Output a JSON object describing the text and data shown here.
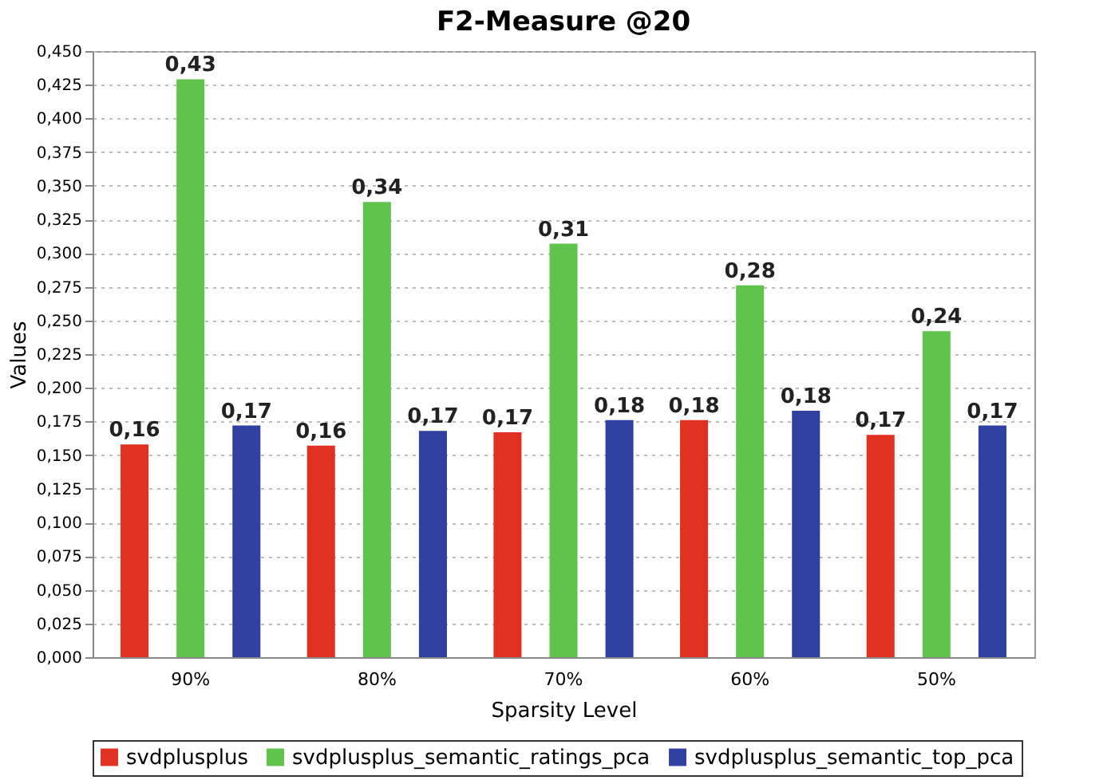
{
  "chart_data": {
    "type": "bar",
    "title": "F2-Measure @20",
    "xlabel": "Sparsity Level",
    "ylabel": "Values",
    "categories": [
      "90%",
      "80%",
      "70%",
      "60%",
      "50%"
    ],
    "series": [
      {
        "name": "svdplusplus",
        "color": "#e03020",
        "values": [
          0.158,
          0.157,
          0.167,
          0.176,
          0.165
        ],
        "value_labels": [
          "0,16",
          "0,16",
          "0,17",
          "0,18",
          "0,17"
        ]
      },
      {
        "name": "svdplusplus_semantic_ratings_pca",
        "color": "#60c44c",
        "values": [
          0.429,
          0.338,
          0.307,
          0.276,
          0.242
        ],
        "value_labels": [
          "0,43",
          "0,34",
          "0,31",
          "0,28",
          "0,24"
        ]
      },
      {
        "name": "svdplusplus_semantic_top_pca",
        "color": "#3040a0",
        "values": [
          0.172,
          0.168,
          0.176,
          0.183,
          0.172
        ],
        "value_labels": [
          "0,17",
          "0,17",
          "0,18",
          "0,18",
          "0,17"
        ]
      }
    ],
    "ylim": [
      0,
      0.45
    ],
    "yticks": [
      {
        "value": 0,
        "label": "0,000"
      },
      {
        "value": 0.025,
        "label": "0,025"
      },
      {
        "value": 0.05,
        "label": "0,050"
      },
      {
        "value": 0.075,
        "label": "0,075"
      },
      {
        "value": 0.1,
        "label": "0,100"
      },
      {
        "value": 0.125,
        "label": "0,125"
      },
      {
        "value": 0.15,
        "label": "0,150"
      },
      {
        "value": 0.175,
        "label": "0,175"
      },
      {
        "value": 0.2,
        "label": "0,200"
      },
      {
        "value": 0.225,
        "label": "0,225"
      },
      {
        "value": 0.25,
        "label": "0,250"
      },
      {
        "value": 0.275,
        "label": "0,275"
      },
      {
        "value": 0.3,
        "label": "0,300"
      },
      {
        "value": 0.325,
        "label": "0,325"
      },
      {
        "value": 0.35,
        "label": "0,350"
      },
      {
        "value": 0.375,
        "label": "0,375"
      },
      {
        "value": 0.4,
        "label": "0,400"
      },
      {
        "value": 0.425,
        "label": "0,425"
      },
      {
        "value": 0.45,
        "label": "0,450"
      }
    ],
    "grid": "y",
    "legend": "bottom"
  }
}
